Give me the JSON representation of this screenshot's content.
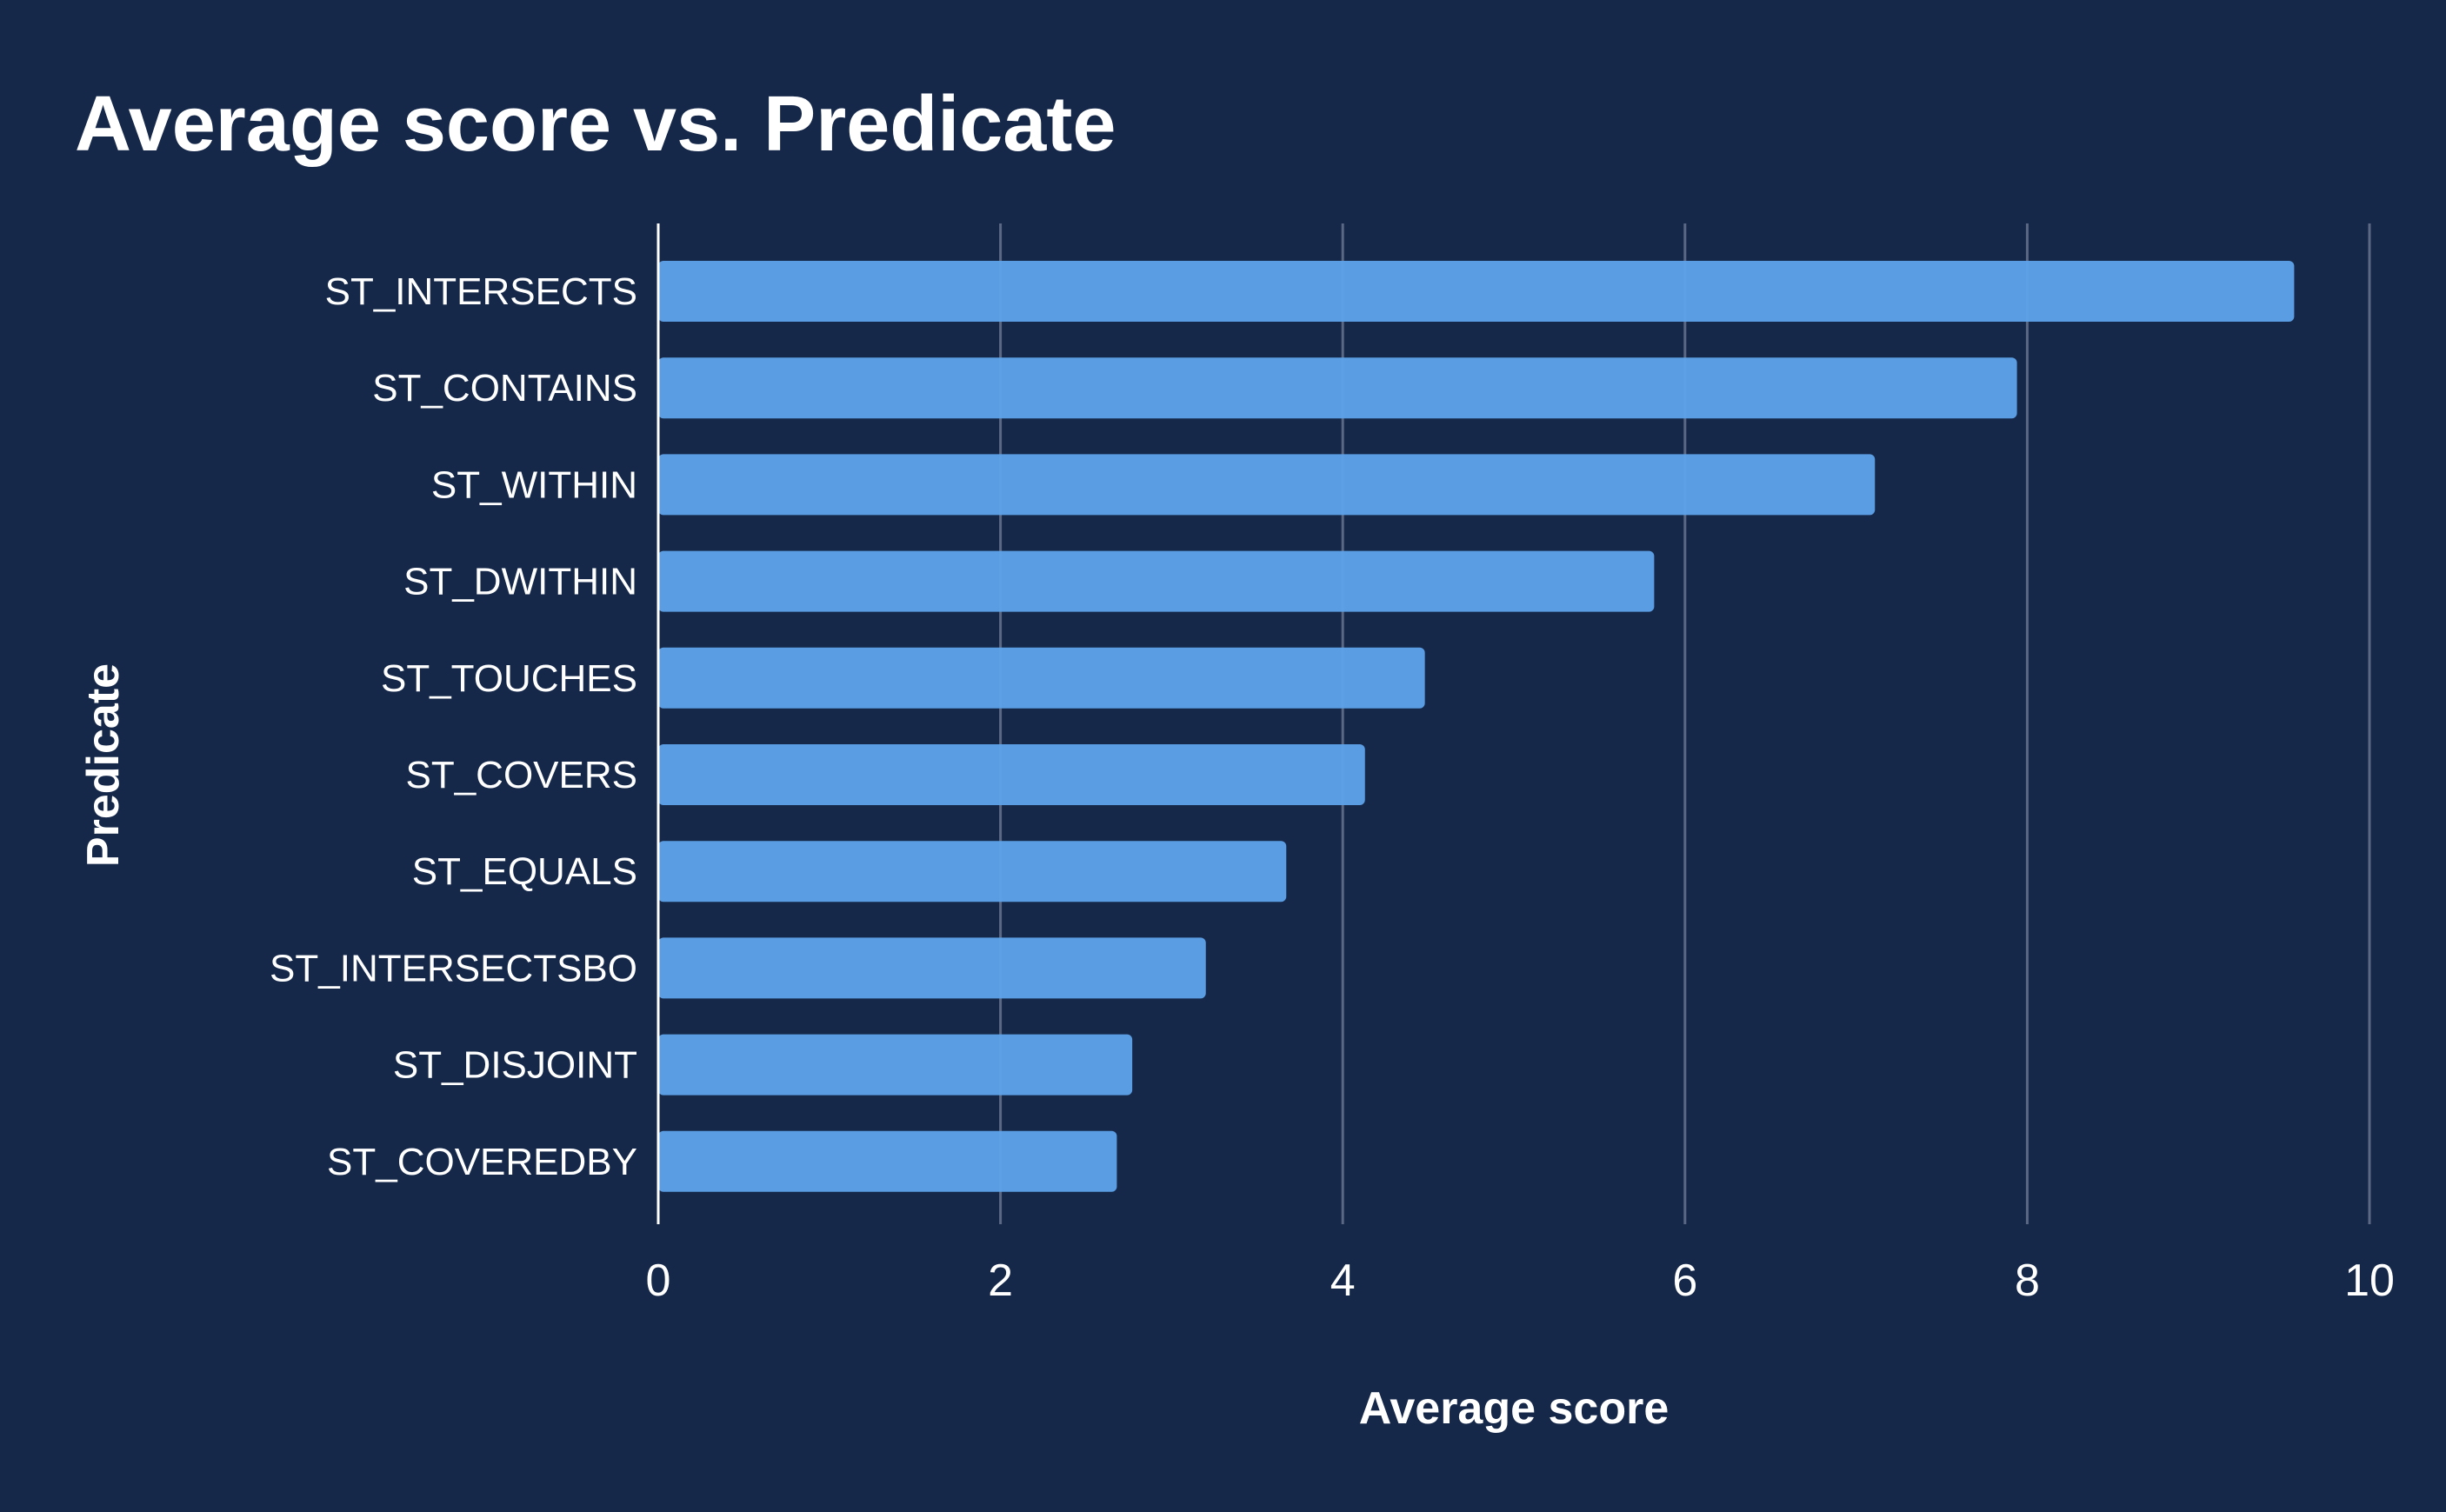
{
  "chart_data": {
    "type": "bar",
    "orientation": "horizontal",
    "title": "Average score vs. Predicate",
    "xlabel": "Average score",
    "ylabel": "Predicate",
    "categories": [
      "ST_INTERSECTS",
      "ST_CONTAINS",
      "ST_WITHIN",
      "ST_DWITHIN",
      "ST_TOUCHES",
      "ST_COVERS",
      "ST_EQUALS",
      "ST_INTERSECTSBO",
      "ST_DISJOINT",
      "ST_COVEREDBY"
    ],
    "values": [
      9.56,
      7.94,
      7.11,
      5.82,
      4.48,
      4.13,
      3.67,
      3.2,
      2.77,
      2.68
    ],
    "xlim": [
      0,
      10
    ],
    "xticks": [
      "0",
      "2",
      "4",
      "6",
      "8",
      "10"
    ],
    "grid": "vertical",
    "colors": {
      "background": "#15284a",
      "bar": "#5ea3ea",
      "grid": "#5a6883"
    }
  }
}
